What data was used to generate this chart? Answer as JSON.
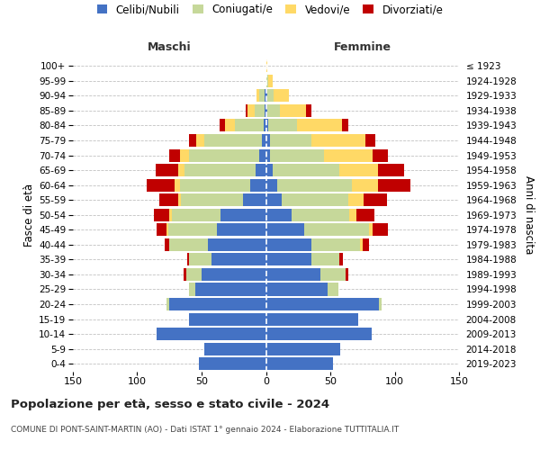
{
  "age_groups": [
    "0-4",
    "5-9",
    "10-14",
    "15-19",
    "20-24",
    "25-29",
    "30-34",
    "35-39",
    "40-44",
    "45-49",
    "50-54",
    "55-59",
    "60-64",
    "65-69",
    "70-74",
    "75-79",
    "80-84",
    "85-89",
    "90-94",
    "95-99",
    "100+"
  ],
  "birth_years": [
    "2019-2023",
    "2014-2018",
    "2009-2013",
    "2004-2008",
    "1999-2003",
    "1994-1998",
    "1989-1993",
    "1984-1988",
    "1979-1983",
    "1974-1978",
    "1969-1973",
    "1964-1968",
    "1959-1963",
    "1954-1958",
    "1949-1953",
    "1944-1948",
    "1939-1943",
    "1934-1938",
    "1929-1933",
    "1924-1928",
    "≤ 1923"
  ],
  "male": {
    "celibe": [
      52,
      48,
      85,
      60,
      75,
      55,
      50,
      42,
      45,
      38,
      35,
      18,
      12,
      8,
      5,
      3,
      2,
      1,
      1,
      0,
      0
    ],
    "coniugato": [
      0,
      0,
      0,
      0,
      2,
      5,
      12,
      18,
      30,
      38,
      38,
      48,
      55,
      55,
      55,
      45,
      22,
      8,
      4,
      0,
      0
    ],
    "vedovo": [
      0,
      0,
      0,
      0,
      0,
      0,
      0,
      0,
      0,
      1,
      2,
      2,
      4,
      5,
      7,
      6,
      8,
      5,
      2,
      0,
      0
    ],
    "divorziato": [
      0,
      0,
      0,
      0,
      0,
      0,
      2,
      1,
      4,
      8,
      12,
      15,
      22,
      18,
      8,
      6,
      4,
      2,
      0,
      0,
      0
    ]
  },
  "female": {
    "nubile": [
      52,
      58,
      82,
      72,
      88,
      48,
      42,
      35,
      35,
      30,
      20,
      12,
      9,
      5,
      3,
      3,
      2,
      1,
      1,
      0,
      0
    ],
    "coniugata": [
      0,
      0,
      0,
      0,
      2,
      8,
      20,
      22,
      38,
      50,
      45,
      52,
      58,
      52,
      42,
      32,
      22,
      10,
      5,
      2,
      0
    ],
    "vedova": [
      0,
      0,
      0,
      0,
      0,
      0,
      0,
      0,
      2,
      3,
      5,
      12,
      20,
      30,
      38,
      42,
      35,
      20,
      12,
      3,
      1
    ],
    "divorziata": [
      0,
      0,
      0,
      0,
      0,
      0,
      2,
      3,
      5,
      12,
      14,
      18,
      25,
      20,
      12,
      8,
      5,
      4,
      0,
      0,
      0
    ]
  },
  "colors": {
    "celibe": "#4472C4",
    "coniugato": "#C6D89A",
    "vedovo": "#FFD966",
    "divorziato": "#C00000"
  },
  "xlim": 150,
  "title": "Popolazione per età, sesso e stato civile - 2024",
  "subtitle": "COMUNE DI PONT-SAINT-MARTIN (AO) - Dati ISTAT 1° gennaio 2024 - Elaborazione TUTTITALIA.IT",
  "ylabel_left": "Fasce di età",
  "ylabel_right": "Anni di nascita",
  "header_left": "Maschi",
  "header_right": "Femmine",
  "legend_labels": [
    "Celibi/Nubili",
    "Coniugati/e",
    "Vedovi/e",
    "Divorziati/e"
  ],
  "bg_color": "#FFFFFF",
  "grid_color": "#CCCCCC"
}
